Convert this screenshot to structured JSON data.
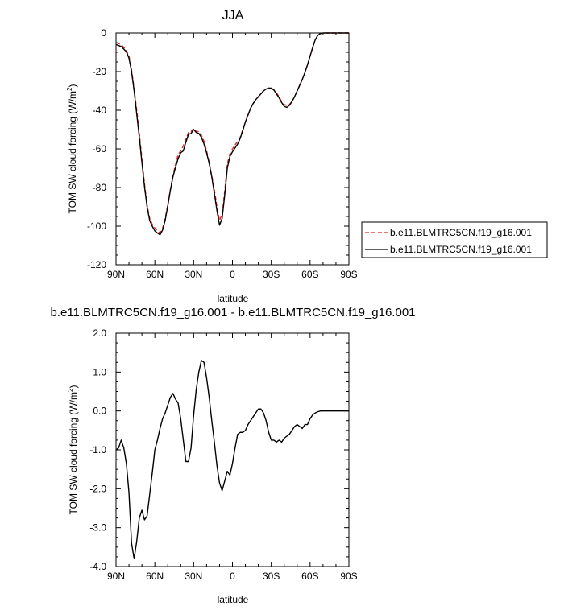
{
  "chart_data": [
    {
      "type": "line",
      "title": "JJA",
      "xlabel": "latitude",
      "ylabel": "TOM SW cloud forcing (W/m",
      "ylabel_sup": "2",
      "ylabel_close": ")",
      "xlim": [
        90,
        -90
      ],
      "ylim": [
        -120,
        0
      ],
      "xticks": [
        90,
        60,
        30,
        0,
        -30,
        -60,
        -90
      ],
      "xtick_labels": [
        "90N",
        "60N",
        "30N",
        "0",
        "30S",
        "60S",
        "90S"
      ],
      "yticks": [
        0,
        -20,
        -40,
        -60,
        -80,
        -100,
        -120
      ],
      "ytick_labels": [
        "0",
        "-20",
        "-40",
        "-60",
        "-80",
        "-100",
        "-120"
      ],
      "legend_position": "right",
      "x": [
        90,
        86,
        82,
        80,
        78,
        76,
        74,
        72,
        70,
        68,
        66,
        64,
        62,
        60,
        58,
        56,
        54,
        52,
        50,
        48,
        46,
        44,
        42,
        40,
        38,
        36,
        34,
        32,
        30,
        28,
        26,
        24,
        22,
        20,
        18,
        16,
        14,
        12,
        10,
        8,
        6,
        4,
        2,
        0,
        -2,
        -4,
        -6,
        -8,
        -10,
        -12,
        -14,
        -16,
        -18,
        -20,
        -22,
        -24,
        -26,
        -28,
        -30,
        -32,
        -34,
        -36,
        -38,
        -40,
        -42,
        -44,
        -46,
        -48,
        -50,
        -52,
        -54,
        -56,
        -58,
        -60,
        -62,
        -64,
        -66,
        -68,
        -70,
        -74,
        -78,
        -82,
        -86,
        -90
      ],
      "series": [
        {
          "name": "b.e11.BLMTRC5CN.f19_g16.001",
          "color": "#e32626",
          "dash": "dashed",
          "values": [
            -5,
            -6,
            -9,
            -12,
            -19,
            -29,
            -40,
            -52,
            -65,
            -78,
            -89,
            -96,
            -99,
            -101,
            -102.5,
            -103.5,
            -101,
            -96,
            -89,
            -81,
            -74,
            -68,
            -63,
            -61,
            -58.5,
            -55,
            -51.5,
            -51,
            -49.5,
            -51,
            -51,
            -53,
            -56,
            -61,
            -67,
            -74,
            -81,
            -90,
            -97,
            -94,
            -82,
            -68,
            -62.5,
            -60,
            -58,
            -56,
            -54,
            -50,
            -46,
            -42.5,
            -39,
            -36.5,
            -34.5,
            -33,
            -31.5,
            -30,
            -29,
            -28.5,
            -28.5,
            -29.5,
            -31,
            -33,
            -35.5,
            -37,
            -37.5,
            -37,
            -35.5,
            -33,
            -30,
            -27,
            -24,
            -20.5,
            -16.5,
            -12,
            -7.5,
            -3.5,
            -1.2,
            -0.3,
            0,
            0,
            0,
            0,
            0,
            0
          ]
        },
        {
          "name": "b.e11.BLMTRC5CN.f19_g16.001",
          "color": "#000000",
          "dash": "solid",
          "values": [
            -6,
            -7,
            -9.7,
            -13,
            -20,
            -30,
            -42,
            -54,
            -67,
            -79.5,
            -90,
            -97,
            -100,
            -102.5,
            -103.5,
            -104.5,
            -102,
            -97,
            -89.5,
            -81.5,
            -74.5,
            -69.5,
            -65,
            -62,
            -61,
            -56.5,
            -52.5,
            -52,
            -50,
            -51.5,
            -52,
            -54,
            -57.5,
            -62,
            -67.5,
            -74.5,
            -83,
            -92,
            -99.5,
            -96,
            -84,
            -70,
            -64,
            -61.5,
            -59.5,
            -57.5,
            -54.5,
            -50.5,
            -46,
            -42.5,
            -39,
            -36.5,
            -34.5,
            -33,
            -31.5,
            -30,
            -29,
            -28.5,
            -28.5,
            -29.5,
            -31.5,
            -33.5,
            -36,
            -38,
            -38.5,
            -37.5,
            -35.5,
            -33,
            -30,
            -27,
            -24,
            -20.5,
            -16.5,
            -12,
            -7.5,
            -3.5,
            -1.2,
            -0.3,
            0,
            0,
            0,
            0,
            0,
            0
          ]
        }
      ]
    },
    {
      "type": "line",
      "title": "b.e11.BLMTRC5CN.f19_g16.001 - b.e11.BLMTRC5CN.f19_g16.001",
      "xlabel": "latitude",
      "ylabel": "TOM SW cloud forcing (W/m",
      "ylabel_sup": "2",
      "ylabel_close": ")",
      "xlim": [
        90,
        -90
      ],
      "ylim": [
        -4,
        2
      ],
      "xticks": [
        90,
        60,
        30,
        0,
        -30,
        -60,
        -90
      ],
      "xtick_labels": [
        "90N",
        "60N",
        "30N",
        "0",
        "30S",
        "60S",
        "90S"
      ],
      "yticks": [
        2,
        1,
        0,
        -1,
        -2,
        -3,
        -4
      ],
      "ytick_labels": [
        "2.0",
        "1.0",
        "0.0",
        "-1.0",
        "-2.0",
        "-3.0",
        "-4.0"
      ],
      "x": [
        90,
        88,
        86,
        84,
        82,
        80,
        78,
        76,
        74,
        72,
        70,
        68,
        66,
        64,
        62,
        60,
        58,
        56,
        54,
        52,
        50,
        48,
        46,
        44,
        42,
        40,
        38,
        36,
        34,
        32,
        30,
        28,
        26,
        24,
        22,
        20,
        18,
        16,
        14,
        12,
        10,
        8,
        6,
        4,
        2,
        0,
        -2,
        -4,
        -6,
        -8,
        -10,
        -12,
        -14,
        -16,
        -18,
        -20,
        -22,
        -24,
        -26,
        -28,
        -30,
        -32,
        -34,
        -36,
        -38,
        -40,
        -42,
        -44,
        -46,
        -48,
        -50,
        -52,
        -54,
        -56,
        -58,
        -60,
        -62,
        -64,
        -66,
        -68,
        -70,
        -74,
        -78,
        -82,
        -86,
        -90
      ],
      "series": [
        {
          "color": "#000000",
          "values": [
            -1.0,
            -0.95,
            -0.75,
            -0.95,
            -1.35,
            -2.1,
            -3.4,
            -3.8,
            -3.35,
            -2.75,
            -2.55,
            -2.8,
            -2.7,
            -2.15,
            -1.6,
            -1.0,
            -0.75,
            -0.45,
            -0.2,
            -0.05,
            0.15,
            0.35,
            0.45,
            0.3,
            0.2,
            -0.2,
            -0.75,
            -1.3,
            -1.3,
            -0.95,
            -0.1,
            0.55,
            1.0,
            1.3,
            1.25,
            0.85,
            0.35,
            -0.25,
            -0.8,
            -1.4,
            -1.85,
            -2.05,
            -1.8,
            -1.55,
            -1.65,
            -1.35,
            -0.95,
            -0.6,
            -0.55,
            -0.55,
            -0.5,
            -0.35,
            -0.25,
            -0.15,
            -0.05,
            0.05,
            0.05,
            -0.05,
            -0.25,
            -0.55,
            -0.75,
            -0.75,
            -0.8,
            -0.75,
            -0.8,
            -0.7,
            -0.65,
            -0.6,
            -0.5,
            -0.4,
            -0.35,
            -0.4,
            -0.45,
            -0.35,
            -0.35,
            -0.2,
            -0.1,
            -0.05,
            -0.02,
            0,
            0,
            0,
            0,
            0,
            0,
            0
          ]
        }
      ]
    }
  ]
}
